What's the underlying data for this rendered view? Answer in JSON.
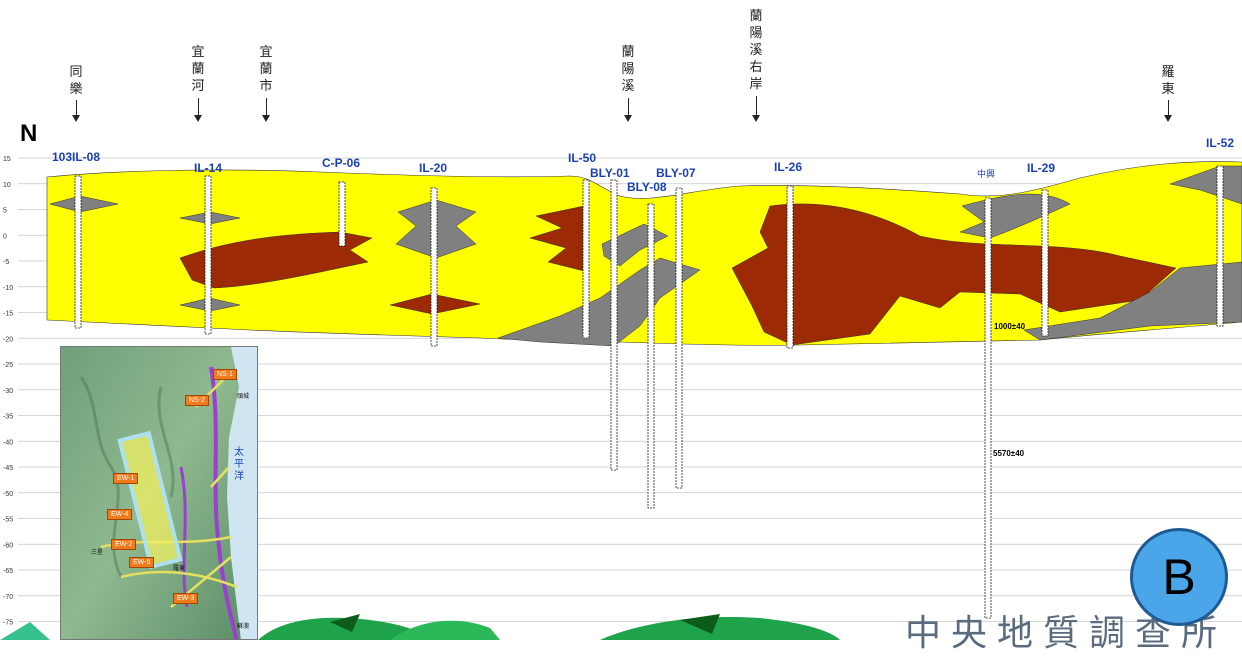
{
  "north": "N",
  "place_labels": [
    {
      "id": "tongle",
      "text": "同\n樂"
    },
    {
      "id": "yilan-river",
      "text": "宜\n蘭\n河"
    },
    {
      "id": "yilan-city",
      "text": "宜\n蘭\n市"
    },
    {
      "id": "lanyang-river",
      "text": "蘭\n陽\n溪"
    },
    {
      "id": "lanyang-right-bank",
      "text": "蘭\n陽\n溪\n右\n岸"
    },
    {
      "id": "luodong",
      "text": "羅\n東"
    }
  ],
  "wells": [
    {
      "id": "103il-08",
      "label": "103IL-08"
    },
    {
      "id": "il-14",
      "label": "IL-14"
    },
    {
      "id": "c-p-06",
      "label": "C-P-06"
    },
    {
      "id": "il-20",
      "label": "IL-20"
    },
    {
      "id": "il-50",
      "label": "IL-50"
    },
    {
      "id": "bly-01",
      "label": "BLY-01"
    },
    {
      "id": "bly-08",
      "label": "BLY-08"
    },
    {
      "id": "bly-07",
      "label": "BLY-07"
    },
    {
      "id": "il-26",
      "label": "IL-26"
    },
    {
      "id": "il-29",
      "label": "IL-29"
    },
    {
      "id": "il-52",
      "label": "IL-52"
    }
  ],
  "depth_ticks": [
    "15",
    "10",
    "5",
    "0",
    "-5",
    "-10",
    "-15",
    "-20",
    "-25",
    "-30",
    "-35",
    "-40",
    "-45",
    "-50",
    "-55",
    "-60",
    "-65",
    "-70",
    "-75"
  ],
  "zhongxing": "中興",
  "dates": [
    "1000±40",
    "5570±40"
  ],
  "badge": "B",
  "footer": "中央地質調查所",
  "map": {
    "tags": [
      "NS-1",
      "NS-2",
      "EW-1",
      "EW-4",
      "EW-2",
      "EW-5",
      "EW-3"
    ],
    "ocean": "太\n平\n洋",
    "small_labels": [
      "頭城",
      "三星",
      "羅東",
      "蘇澳"
    ]
  },
  "colors": {
    "sand": "#ffff00",
    "clay": "#9b2a05",
    "gravel": "#808080",
    "label_blue": "#1a3fb3",
    "badge": "#4aa6e8"
  }
}
